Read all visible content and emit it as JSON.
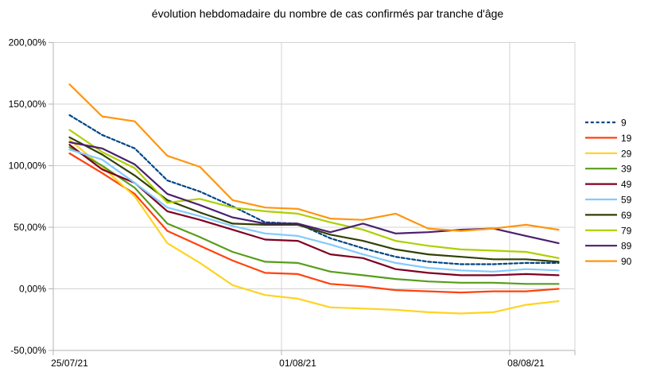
{
  "title": "évolution hebdomadaire du nombre de cas confirmés par tranche d'âge",
  "chart_data": {
    "type": "line",
    "title": "évolution hebdomadaire du nombre de cas confirmés par tranche d'âge",
    "x_points": 16,
    "x_axis": {
      "tick_labels": [
        "25/07/21",
        "01/08/21",
        "08/08/21"
      ],
      "tick_point_indices": [
        0,
        7,
        14
      ],
      "note_unlabeled_points": "daily points between labeled weekly ticks"
    },
    "y_axis": {
      "ylim": [
        -50,
        200
      ],
      "tick_values": [
        200,
        150,
        100,
        50,
        0,
        -50
      ],
      "tick_labels": [
        "200,00%",
        "150,00%",
        "100,00%",
        "50,00%",
        "0,00%",
        "-50,00%"
      ]
    },
    "grid": true,
    "legend_position": "right",
    "series": [
      {
        "name": "9",
        "color": "#004586",
        "dashed": true,
        "values": [
          141,
          125,
          114,
          88,
          79,
          67,
          54,
          53,
          41,
          33,
          26,
          22,
          20,
          20,
          21,
          21
        ]
      },
      {
        "name": "19",
        "color": "#ff420e",
        "dashed": false,
        "values": [
          110,
          94,
          77,
          47,
          35,
          23,
          13,
          12,
          4,
          2,
          -1,
          -2,
          -3,
          -2,
          -2,
          0
        ]
      },
      {
        "name": "29",
        "color": "#ffd320",
        "dashed": false,
        "values": [
          121,
          99,
          75,
          37,
          21,
          3,
          -5,
          -8,
          -15,
          -16,
          -17,
          -19,
          -20,
          -19,
          -13,
          -10
        ]
      },
      {
        "name": "39",
        "color": "#579d1c",
        "dashed": false,
        "values": [
          115,
          100,
          82,
          53,
          42,
          30,
          22,
          21,
          14,
          11,
          8,
          6,
          5,
          5,
          4,
          4
        ]
      },
      {
        "name": "49",
        "color": "#7e0021",
        "dashed": false,
        "values": [
          117,
          97,
          86,
          63,
          56,
          48,
          40,
          39,
          28,
          25,
          16,
          13,
          11,
          11,
          12,
          11
        ]
      },
      {
        "name": "59",
        "color": "#83caff",
        "dashed": false,
        "values": [
          113,
          105,
          86,
          66,
          59,
          51,
          45,
          43,
          36,
          28,
          21,
          17,
          15,
          14,
          16,
          15
        ]
      },
      {
        "name": "69",
        "color": "#314004",
        "dashed": false,
        "values": [
          123,
          109,
          92,
          72,
          62,
          53,
          52,
          52,
          44,
          39,
          32,
          28,
          26,
          24,
          24,
          22
        ]
      },
      {
        "name": "79",
        "color": "#aecf00",
        "dashed": false,
        "values": [
          129,
          111,
          98,
          70,
          73,
          66,
          63,
          61,
          54,
          48,
          39,
          35,
          32,
          31,
          30,
          25
        ]
      },
      {
        "name": "89",
        "color": "#4b1f6f",
        "dashed": false,
        "values": [
          119,
          114,
          101,
          77,
          68,
          58,
          53,
          53,
          46,
          53,
          45,
          46,
          48,
          49,
          43,
          37
        ]
      },
      {
        "name": "90",
        "color": "#ff950e",
        "dashed": false,
        "values": [
          166,
          140,
          136,
          108,
          99,
          72,
          66,
          65,
          57,
          56,
          61,
          49,
          47,
          49,
          52,
          48
        ]
      }
    ]
  }
}
